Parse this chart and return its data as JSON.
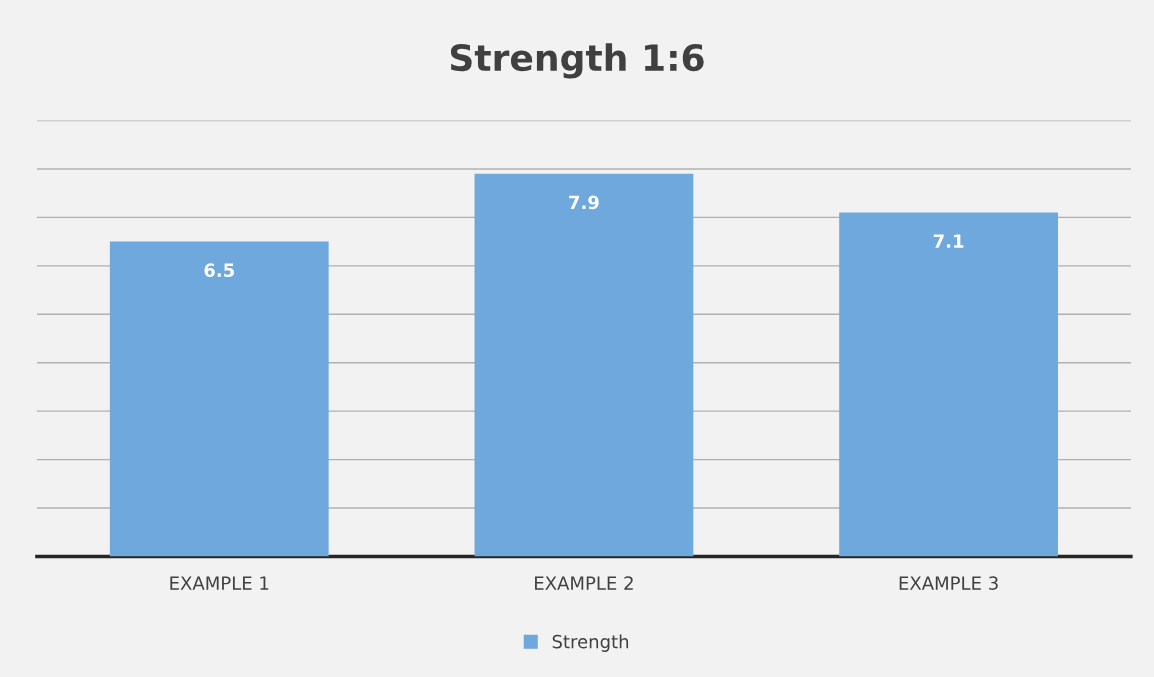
{
  "chart_data": {
    "type": "bar",
    "title": "Strength 1:6",
    "categories": [
      "EXAMPLE 1",
      "EXAMPLE 2",
      "EXAMPLE 3"
    ],
    "series": [
      {
        "name": "Strength",
        "color": "#6fa8dc",
        "values": [
          6.5,
          7.9,
          7.1
        ]
      }
    ],
    "ylim": [
      0,
      9
    ],
    "yticks": [
      {
        "value": 0,
        "label": null
      },
      {
        "value": 1,
        "label": null
      },
      {
        "value": 2,
        "label": null
      },
      {
        "value": 3,
        "label": null
      },
      {
        "value": 4,
        "label": null
      },
      {
        "value": 5,
        "label": null
      },
      {
        "value": 6,
        "label": null
      },
      {
        "value": 7,
        "label": null
      },
      {
        "value": 8,
        "label": null
      },
      {
        "value": 9,
        "label": null
      }
    ],
    "tick_labels": "x",
    "grid": "y",
    "data_labels": true,
    "legend": "bottom"
  }
}
